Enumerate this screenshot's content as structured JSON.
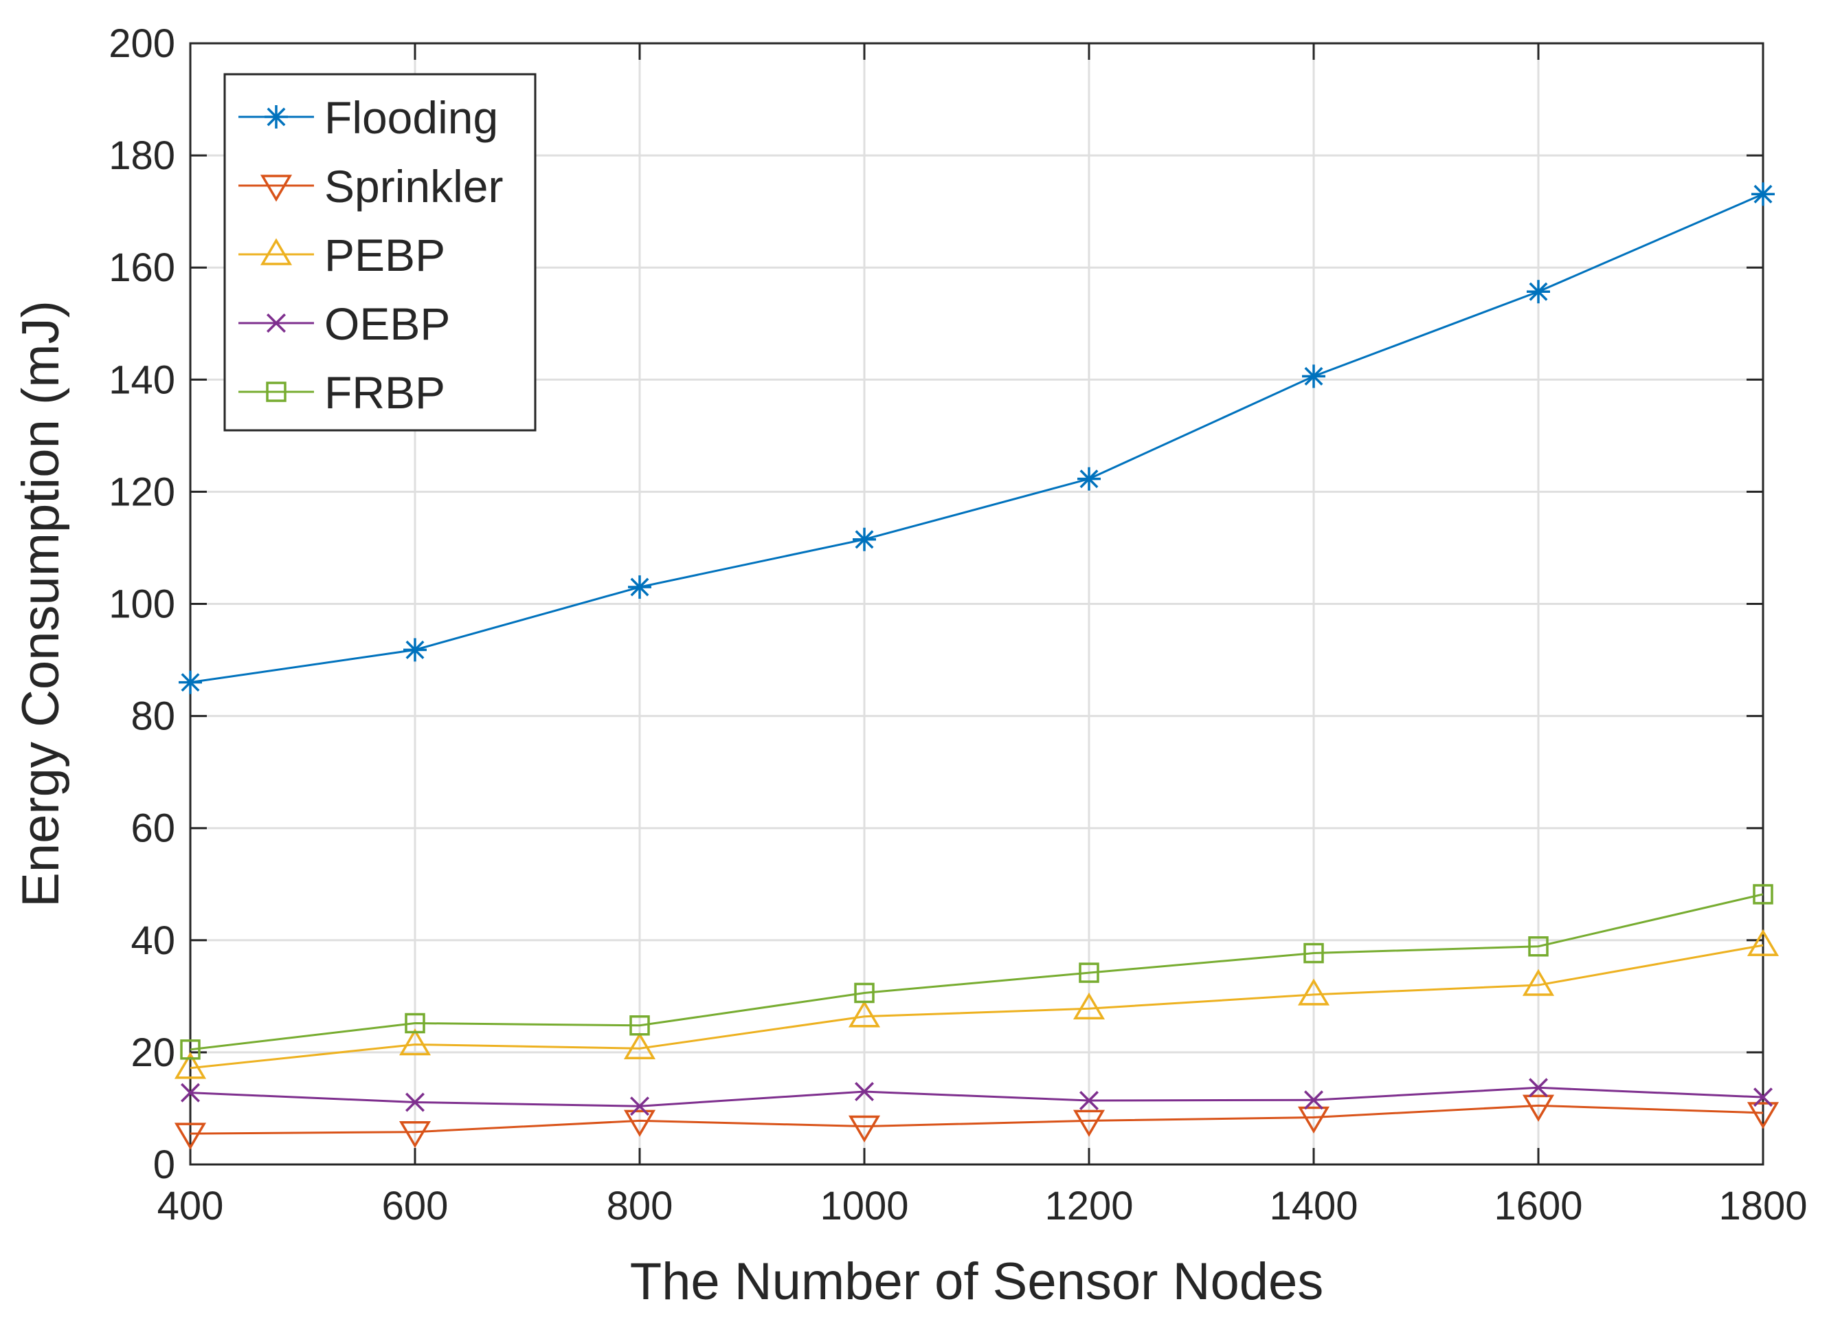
{
  "chart_data": {
    "type": "line",
    "title": "",
    "xlabel": "The Number of Sensor Nodes",
    "ylabel": "Energy Consumption (mJ)",
    "x": [
      400,
      600,
      800,
      1000,
      1200,
      1400,
      1600,
      1800
    ],
    "xlim": [
      400,
      1800
    ],
    "ylim": [
      0,
      200
    ],
    "xticks": [
      400,
      600,
      800,
      1000,
      1200,
      1400,
      1600,
      1800
    ],
    "yticks": [
      0,
      20,
      40,
      60,
      80,
      100,
      120,
      140,
      160,
      180,
      200
    ],
    "grid": true,
    "legend_position": "top-left",
    "series": [
      {
        "name": "Flooding",
        "color": "#0072BD",
        "marker": "asterisk",
        "values": [
          86,
          91.8,
          103,
          111.5,
          122.3,
          140.6,
          155.7,
          173.1
        ]
      },
      {
        "name": "Sprinkler",
        "color": "#D95319",
        "marker": "triangle-down",
        "values": [
          5.5,
          5.8,
          7.8,
          6.8,
          7.8,
          8.4,
          10.5,
          9.2
        ]
      },
      {
        "name": "PEBP",
        "color": "#EDB120",
        "marker": "triangle-up",
        "values": [
          17.2,
          21.4,
          20.7,
          26.4,
          27.8,
          30.3,
          32.0,
          39.1
        ]
      },
      {
        "name": "OEBP",
        "color": "#7E2F8E",
        "marker": "x",
        "values": [
          12.8,
          11.1,
          10.4,
          13.0,
          11.4,
          11.5,
          13.7,
          12.0
        ]
      },
      {
        "name": "FRBP",
        "color": "#77AC30",
        "marker": "square",
        "values": [
          20.5,
          25.2,
          24.8,
          30.6,
          34.2,
          37.7,
          38.9,
          48.2
        ]
      }
    ]
  }
}
